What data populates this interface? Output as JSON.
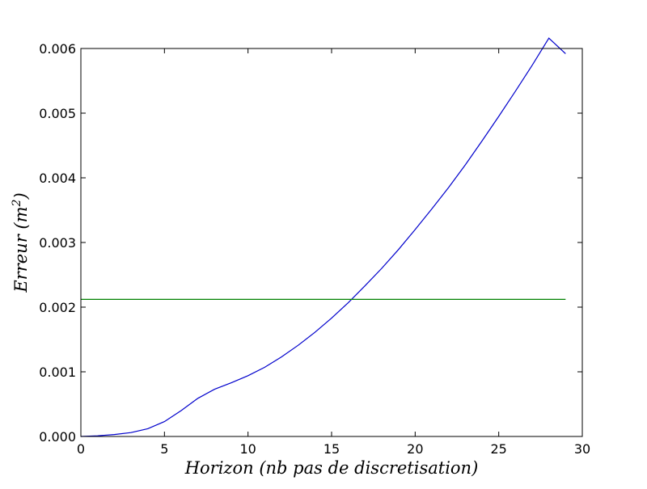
{
  "chart_data": {
    "type": "line",
    "title": "",
    "xlabel": "Horizon (nb pas de discretisation)",
    "ylabel_main": "Erreur (m",
    "ylabel_sup": "2",
    "ylabel_close": ")",
    "xlim": [
      0,
      30
    ],
    "ylim": [
      0,
      0.006
    ],
    "xticks": [
      0,
      5,
      10,
      15,
      20,
      25,
      30
    ],
    "xtick_labels": [
      "0",
      "5",
      "10",
      "15",
      "20",
      "25",
      "30"
    ],
    "yticks": [
      0,
      0.001,
      0.002,
      0.003,
      0.004,
      0.005,
      0.006
    ],
    "ytick_labels": [
      "0.000",
      "0.001",
      "0.002",
      "0.003",
      "0.004",
      "0.005",
      "0.006"
    ],
    "grid": false,
    "series": [
      {
        "color": "#0000cc",
        "x": [
          0,
          1,
          2,
          3,
          4,
          5,
          6,
          7,
          8,
          9,
          10,
          11,
          12,
          13,
          14,
          15,
          16,
          17,
          18,
          19,
          20,
          21,
          22,
          23,
          24,
          25,
          26,
          27,
          28,
          29
        ],
        "y": [
          0.0,
          1e-05,
          3e-05,
          6e-05,
          0.00012,
          0.00023,
          0.0004,
          0.00059,
          0.00073,
          0.00083,
          0.00094,
          0.00107,
          0.00123,
          0.00141,
          0.00161,
          0.00183,
          0.00207,
          0.00233,
          0.0026,
          0.00289,
          0.0032,
          0.00352,
          0.00385,
          0.0042,
          0.00457,
          0.00495,
          0.00534,
          0.00574,
          0.00616,
          0.00592
        ]
      },
      {
        "color": "#008000",
        "x": [
          0,
          29
        ],
        "y": [
          0.00212,
          0.00212
        ]
      }
    ]
  }
}
